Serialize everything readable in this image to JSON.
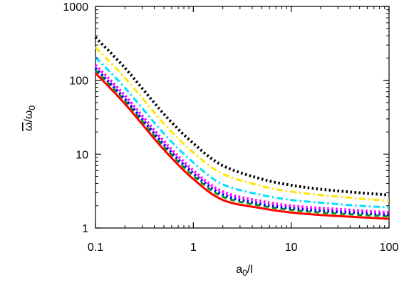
{
  "chart_data": {
    "type": "line",
    "xlabel_main": "a",
    "xlabel_sub": "0",
    "xlabel_tail": "/l",
    "ylabel_main": "ω",
    "ylabel_mid": "/ω",
    "ylabel_sub": "0",
    "xscale": "log",
    "yscale": "log",
    "xlim": [
      0.1,
      100
    ],
    "ylim": [
      1,
      1000
    ],
    "xticks": [
      0.1,
      1,
      10,
      100
    ],
    "xtick_labels": [
      "0.1",
      "1",
      "10",
      "100"
    ],
    "yticks": [
      1,
      10,
      100,
      1000
    ],
    "ytick_labels": [
      "1",
      "10",
      "100",
      "1000"
    ],
    "grid": false,
    "legend": "none",
    "x": [
      0.1,
      0.2,
      0.5,
      1,
      2,
      5,
      10,
      20,
      50,
      100
    ],
    "series": [
      {
        "color": "#ff0000",
        "style": "solid",
        "values": [
          125,
          48,
          11.5,
          4.6,
          2.4,
          1.85,
          1.62,
          1.5,
          1.4,
          1.33
        ]
      },
      {
        "color": "#00a000",
        "style": "dashed",
        "values": [
          137,
          53,
          12.7,
          5.1,
          2.65,
          2.0,
          1.76,
          1.62,
          1.51,
          1.44
        ]
      },
      {
        "color": "#0000ff",
        "style": "dotted",
        "values": [
          146,
          56,
          13.6,
          5.5,
          2.85,
          2.1,
          1.86,
          1.72,
          1.6,
          1.52
        ]
      },
      {
        "color": "#ff00ff",
        "style": "dotted",
        "values": [
          160,
          62,
          15.0,
          6.0,
          3.1,
          2.3,
          2.0,
          1.86,
          1.72,
          1.62
        ]
      },
      {
        "color": "#00e0ff",
        "style": "dashdot",
        "values": [
          205,
          79,
          19.0,
          7.7,
          3.9,
          2.8,
          2.4,
          2.2,
          2.0,
          1.9
        ]
      },
      {
        "color": "#ffe600",
        "style": "dashdot",
        "values": [
          280,
          108,
          26.0,
          10.5,
          5.4,
          3.7,
          3.1,
          2.8,
          2.5,
          2.35
        ]
      },
      {
        "color": "#000000",
        "style": "dotted",
        "values": [
          380,
          147,
          35.0,
          14.0,
          7.0,
          4.6,
          3.8,
          3.35,
          3.0,
          2.8
        ]
      }
    ]
  }
}
